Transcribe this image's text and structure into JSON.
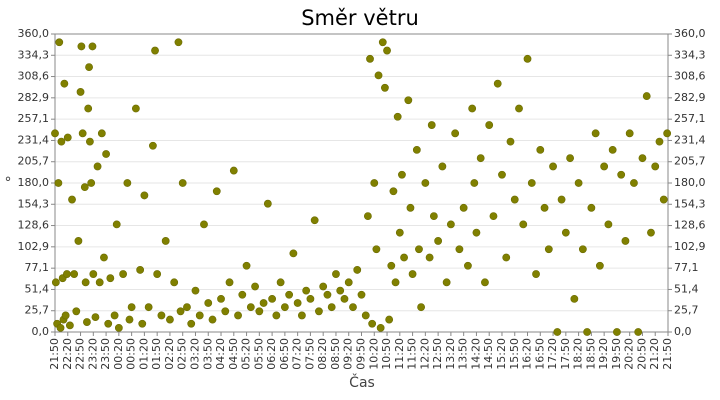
{
  "chart_data": {
    "type": "scatter",
    "title": "Směr větru",
    "x_label": "Čas",
    "y_label": "°",
    "color": "#808000",
    "grid": true,
    "xticks": [
      "21:50",
      "22:20",
      "22:50",
      "23:20",
      "23:50",
      "00:20",
      "00:50",
      "01:20",
      "01:50",
      "02:20",
      "02:50",
      "03:20",
      "03:50",
      "04:20",
      "04:50",
      "05:20",
      "05:50",
      "06:20",
      "06:50",
      "07:20",
      "07:50",
      "08:20",
      "08:50",
      "09:20",
      "09:50",
      "10:20",
      "10:50",
      "11:20",
      "11:50",
      "12:20",
      "12:50",
      "13:20",
      "13:50",
      "14:20",
      "14:50",
      "15:20",
      "15:50",
      "16:20",
      "16:50",
      "17:20",
      "17:50",
      "18:20",
      "18:50",
      "19:20",
      "19:50",
      "20:20",
      "20:50",
      "21:20",
      "21:50"
    ],
    "ylim": [
      0,
      360
    ],
    "yticks": [
      {
        "value": 0,
        "label": "0,0"
      },
      {
        "value": 25.7,
        "label": "25,7"
      },
      {
        "value": 51.4,
        "label": "51,4"
      },
      {
        "value": 77.1,
        "label": "77,1"
      },
      {
        "value": 102.9,
        "label": "102,9"
      },
      {
        "value": 128.6,
        "label": "128,6"
      },
      {
        "value": 154.3,
        "label": "154,3"
      },
      {
        "value": 180,
        "label": "180,0"
      },
      {
        "value": 205.7,
        "label": "205,7"
      },
      {
        "value": 231.4,
        "label": "231,4"
      },
      {
        "value": 257.1,
        "label": "257,1"
      },
      {
        "value": 282.9,
        "label": "282,9"
      },
      {
        "value": 308.6,
        "label": "308,6"
      },
      {
        "value": 334.3,
        "label": "334,3"
      },
      {
        "value": 360,
        "label": "360,0"
      }
    ],
    "x": [
      "21:50",
      "21:52",
      "21:55",
      "21:58",
      "22:00",
      "22:03",
      "22:05",
      "22:08",
      "22:10",
      "22:12",
      "22:15",
      "22:18",
      "22:20",
      "22:25",
      "22:30",
      "22:35",
      "22:40",
      "22:45",
      "22:50",
      "22:52",
      "22:55",
      "23:00",
      "23:02",
      "23:05",
      "23:08",
      "23:10",
      "23:12",
      "23:15",
      "23:18",
      "23:20",
      "23:25",
      "23:30",
      "23:35",
      "23:40",
      "23:45",
      "23:50",
      "23:55",
      "00:00",
      "00:10",
      "00:15",
      "00:20",
      "00:30",
      "00:40",
      "00:45",
      "00:50",
      "01:00",
      "01:10",
      "01:15",
      "01:20",
      "01:30",
      "01:40",
      "01:45",
      "01:50",
      "02:00",
      "02:10",
      "02:20",
      "02:30",
      "02:40",
      "02:45",
      "02:50",
      "03:00",
      "03:10",
      "03:20",
      "03:30",
      "03:40",
      "03:50",
      "04:00",
      "04:10",
      "04:20",
      "04:30",
      "04:40",
      "04:50",
      "05:00",
      "05:10",
      "05:20",
      "05:30",
      "05:40",
      "05:50",
      "06:00",
      "06:10",
      "06:20",
      "06:30",
      "06:40",
      "06:50",
      "07:00",
      "07:10",
      "07:20",
      "07:30",
      "07:40",
      "07:50",
      "08:00",
      "08:10",
      "08:20",
      "08:30",
      "08:40",
      "08:50",
      "09:00",
      "09:10",
      "09:20",
      "09:30",
      "09:40",
      "09:50",
      "10:00",
      "10:05",
      "10:10",
      "10:15",
      "10:20",
      "10:25",
      "10:30",
      "10:35",
      "10:40",
      "10:45",
      "10:50",
      "10:55",
      "11:00",
      "11:05",
      "11:10",
      "11:15",
      "11:20",
      "11:25",
      "11:30",
      "11:40",
      "11:45",
      "11:50",
      "12:00",
      "12:05",
      "12:10",
      "12:20",
      "12:30",
      "12:35",
      "12:40",
      "12:50",
      "13:00",
      "13:10",
      "13:20",
      "13:30",
      "13:40",
      "13:50",
      "14:00",
      "14:10",
      "14:15",
      "14:20",
      "14:30",
      "14:40",
      "14:50",
      "15:00",
      "15:10",
      "15:20",
      "15:30",
      "15:40",
      "15:50",
      "16:00",
      "16:10",
      "16:20",
      "16:30",
      "16:40",
      "16:50",
      "17:00",
      "17:10",
      "17:20",
      "17:30",
      "17:40",
      "17:50",
      "18:00",
      "18:10",
      "18:20",
      "18:30",
      "18:40",
      "18:50",
      "19:00",
      "19:10",
      "19:20",
      "19:30",
      "19:40",
      "19:50",
      "20:00",
      "20:10",
      "20:20",
      "20:30",
      "20:40",
      "20:50",
      "21:00",
      "21:10",
      "21:20",
      "21:30",
      "21:40",
      "21:48"
    ],
    "values": [
      240,
      60,
      10,
      180,
      350,
      5,
      230,
      65,
      15,
      300,
      20,
      70,
      235,
      8,
      160,
      70,
      25,
      110,
      290,
      345,
      240,
      175,
      60,
      12,
      270,
      320,
      230,
      180,
      345,
      70,
      18,
      200,
      60,
      240,
      90,
      215,
      10,
      65,
      20,
      130,
      5,
      70,
      180,
      15,
      30,
      270,
      75,
      10,
      165,
      30,
      225,
      340,
      70,
      20,
      110,
      15,
      60,
      350,
      25,
      180,
      30,
      10,
      50,
      20,
      130,
      35,
      15,
      170,
      40,
      25,
      60,
      195,
      20,
      45,
      80,
      30,
      55,
      25,
      35,
      155,
      40,
      20,
      60,
      30,
      45,
      95,
      35,
      20,
      50,
      40,
      135,
      25,
      55,
      45,
      30,
      70,
      50,
      40,
      60,
      30,
      75,
      45,
      20,
      140,
      330,
      10,
      180,
      100,
      310,
      5,
      350,
      295,
      340,
      15,
      80,
      170,
      60,
      260,
      120,
      190,
      90,
      280,
      150,
      70,
      220,
      100,
      30,
      180,
      90,
      250,
      140,
      110,
      200,
      60,
      130,
      240,
      100,
      150,
      80,
      270,
      180,
      120,
      210,
      60,
      250,
      140,
      300,
      190,
      90,
      230,
      160,
      270,
      130,
      330,
      180,
      70,
      220,
      150,
      100,
      200,
      0,
      160,
      120,
      210,
      40,
      180,
      100,
      0,
      150,
      240,
      80,
      200,
      130,
      220,
      0,
      190,
      110,
      240,
      180,
      0,
      210,
      285,
      120,
      200,
      230,
      160,
      240
    ]
  }
}
